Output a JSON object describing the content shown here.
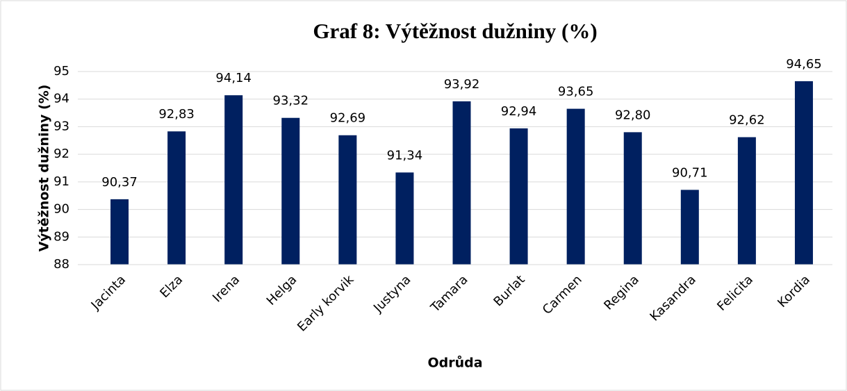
{
  "chart_data": {
    "type": "bar",
    "title": "Graf 8: Výtěžnost dužniny (%)",
    "x_label": "Odrůda",
    "y_label": "Výtěžnost dužniny (%)",
    "categories": [
      "Jacinta",
      "Elza",
      "Irena",
      "Helga",
      "Early korvik",
      "Justyna",
      "Tamara",
      "Burlat",
      "Carmen",
      "Regina",
      "Kasandra",
      "Felicita",
      "Kordia"
    ],
    "values": [
      90.37,
      92.83,
      94.14,
      93.32,
      92.69,
      91.34,
      93.92,
      92.94,
      93.65,
      92.8,
      90.71,
      92.62,
      94.65
    ],
    "value_labels": [
      "90,37",
      "92,83",
      "94,14",
      "93,32",
      "92,69",
      "91,34",
      "93,92",
      "92,94",
      "93,65",
      "92,80",
      "90,71",
      "92,62",
      "94,65"
    ],
    "color": "#002060",
    "ylim": [
      88,
      95
    ],
    "yticks": [
      88,
      89,
      90,
      91,
      92,
      93,
      94,
      95
    ],
    "grid": true
  }
}
